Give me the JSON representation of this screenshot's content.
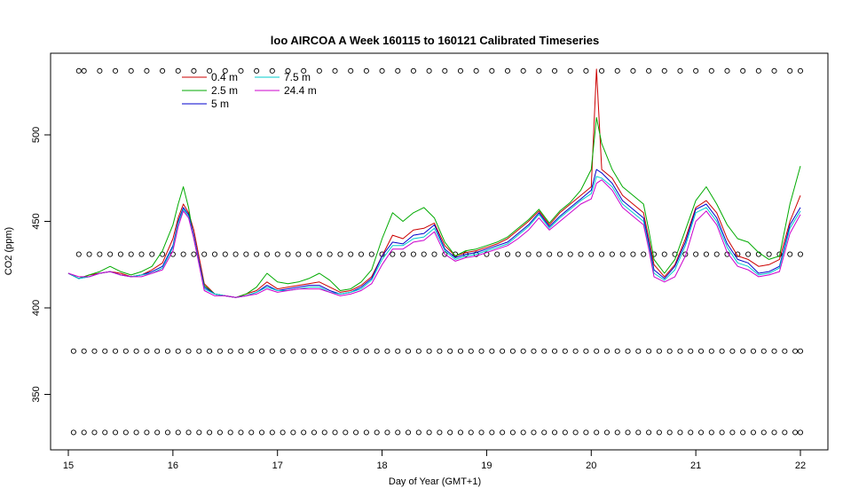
{
  "chart_data": {
    "type": "line",
    "title": "loo AIRCOA A  Week 160115 to 160121  Calibrated Timeseries",
    "xlabel": "Day of Year (GMT+1)",
    "ylabel": "CO2 (ppm)",
    "xlim": [
      15,
      22
    ],
    "ylim": [
      320,
      545
    ],
    "x_ticks": [
      15,
      16,
      17,
      18,
      19,
      20,
      21,
      22
    ],
    "y_ticks": [
      350,
      400,
      450,
      500
    ],
    "grid": false,
    "legend_position": "top-left",
    "x": [
      15.0,
      15.1,
      15.2,
      15.3,
      15.4,
      15.5,
      15.6,
      15.7,
      15.8,
      15.9,
      16.0,
      16.05,
      16.1,
      16.15,
      16.2,
      16.3,
      16.4,
      16.5,
      16.6,
      16.7,
      16.8,
      16.9,
      17.0,
      17.1,
      17.2,
      17.3,
      17.4,
      17.5,
      17.6,
      17.7,
      17.8,
      17.9,
      18.0,
      18.1,
      18.2,
      18.3,
      18.4,
      18.5,
      18.6,
      18.7,
      18.8,
      18.9,
      19.0,
      19.1,
      19.2,
      19.3,
      19.4,
      19.5,
      19.6,
      19.7,
      19.8,
      19.9,
      20.0,
      20.05,
      20.1,
      20.2,
      20.3,
      20.4,
      20.5,
      20.55,
      20.6,
      20.7,
      20.8,
      20.9,
      21.0,
      21.1,
      21.2,
      21.3,
      21.4,
      21.5,
      21.6,
      21.7,
      21.8,
      21.9,
      22.0
    ],
    "series": [
      {
        "name": "0.4 m",
        "color": "#cc0000",
        "values": [
          420,
          417,
          419,
          420,
          421,
          420,
          418,
          419,
          422,
          426,
          440,
          452,
          460,
          455,
          445,
          414,
          408,
          407,
          406,
          408,
          410,
          415,
          411,
          412,
          413,
          414,
          415,
          412,
          409,
          410,
          413,
          418,
          430,
          442,
          440,
          445,
          446,
          449,
          436,
          430,
          432,
          433,
          435,
          437,
          440,
          445,
          450,
          456,
          448,
          455,
          460,
          465,
          470,
          538,
          480,
          475,
          465,
          460,
          455,
          440,
          425,
          418,
          425,
          440,
          458,
          462,
          455,
          440,
          430,
          428,
          424,
          425,
          428,
          450,
          465
        ]
      },
      {
        "name": "2.5 m",
        "color": "#00aa00",
        "values": [
          420,
          417,
          419,
          421,
          424,
          421,
          419,
          421,
          424,
          433,
          448,
          460,
          470,
          458,
          440,
          413,
          408,
          407,
          406,
          408,
          412,
          420,
          415,
          414,
          415,
          417,
          420,
          416,
          410,
          411,
          415,
          422,
          440,
          455,
          450,
          455,
          458,
          452,
          438,
          430,
          433,
          434,
          436,
          438,
          441,
          446,
          451,
          457,
          449,
          456,
          461,
          468,
          480,
          510,
          495,
          480,
          470,
          465,
          460,
          445,
          428,
          420,
          428,
          445,
          462,
          470,
          460,
          448,
          440,
          438,
          432,
          428,
          430,
          460,
          482
        ]
      },
      {
        "name": "5 m",
        "color": "#0000cc",
        "values": [
          420,
          417,
          418,
          420,
          421,
          419,
          418,
          419,
          421,
          424,
          436,
          450,
          458,
          454,
          442,
          412,
          408,
          407,
          406,
          407,
          409,
          413,
          410,
          411,
          412,
          413,
          413,
          410,
          408,
          409,
          412,
          417,
          430,
          438,
          437,
          442,
          443,
          448,
          434,
          429,
          431,
          432,
          434,
          436,
          438,
          443,
          448,
          455,
          447,
          453,
          458,
          463,
          468,
          480,
          478,
          472,
          462,
          457,
          452,
          438,
          422,
          417,
          424,
          438,
          457,
          460,
          452,
          437,
          428,
          426,
          420,
          421,
          424,
          448,
          458
        ]
      },
      {
        "name": "7.5 m",
        "color": "#00cccc",
        "values": [
          420,
          417,
          418,
          420,
          421,
          419,
          418,
          419,
          420,
          423,
          435,
          449,
          457,
          453,
          441,
          411,
          408,
          407,
          406,
          407,
          409,
          412,
          410,
          410,
          411,
          412,
          412,
          409,
          408,
          409,
          411,
          416,
          428,
          436,
          436,
          440,
          441,
          446,
          433,
          428,
          430,
          431,
          433,
          435,
          437,
          442,
          447,
          454,
          446,
          452,
          457,
          462,
          466,
          476,
          475,
          470,
          460,
          455,
          450,
          436,
          420,
          416,
          422,
          436,
          455,
          458,
          450,
          435,
          426,
          424,
          419,
          420,
          423,
          446,
          456
        ]
      },
      {
        "name": "24.4 m",
        "color": "#cc00cc",
        "values": [
          420,
          418,
          418,
          420,
          421,
          419,
          418,
          418,
          420,
          422,
          433,
          447,
          456,
          452,
          440,
          410,
          407,
          407,
          406,
          407,
          408,
          411,
          409,
          410,
          411,
          411,
          411,
          409,
          407,
          408,
          410,
          414,
          425,
          434,
          434,
          438,
          439,
          444,
          431,
          427,
          429,
          430,
          432,
          434,
          436,
          440,
          445,
          452,
          445,
          450,
          455,
          460,
          463,
          472,
          474,
          468,
          458,
          453,
          448,
          434,
          418,
          415,
          418,
          430,
          450,
          456,
          448,
          432,
          424,
          422,
          418,
          419,
          421,
          443,
          454
        ]
      }
    ],
    "flag_rows": [
      {
        "y": 537,
        "x": [
          15.1,
          15.15,
          15.3,
          15.45,
          15.6,
          15.75,
          15.9,
          16.05,
          16.2,
          16.35,
          16.5,
          16.65,
          16.8,
          16.95,
          17.1,
          17.25,
          17.4,
          17.55,
          17.7,
          17.85,
          18.0,
          18.15,
          18.3,
          18.45,
          18.6,
          18.75,
          18.9,
          19.05,
          19.2,
          19.35,
          19.5,
          19.65,
          19.8,
          19.95,
          20.1,
          20.25,
          20.4,
          20.55,
          20.7,
          20.85,
          21.0,
          21.15,
          21.3,
          21.45,
          21.6,
          21.75,
          21.9,
          22.0
        ]
      },
      {
        "y": 431,
        "x": [
          15.1,
          15.2,
          15.3,
          15.4,
          15.5,
          15.6,
          15.7,
          15.8,
          15.9,
          16.0,
          16.1,
          16.2,
          16.3,
          16.4,
          16.5,
          16.6,
          16.7,
          16.8,
          16.9,
          17.0,
          17.1,
          17.2,
          17.3,
          17.4,
          17.5,
          17.6,
          17.7,
          17.8,
          17.9,
          18.0,
          18.1,
          18.2,
          18.3,
          18.4,
          18.5,
          18.6,
          18.7,
          18.8,
          18.9,
          19.0,
          19.1,
          19.2,
          19.3,
          19.4,
          19.5,
          19.6,
          19.7,
          19.8,
          19.9,
          20.0,
          20.1,
          20.2,
          20.3,
          20.4,
          20.5,
          20.6,
          20.7,
          20.8,
          20.9,
          21.0,
          21.1,
          21.2,
          21.3,
          21.4,
          21.5,
          21.6,
          21.7,
          21.8,
          21.9,
          22.0
        ]
      },
      {
        "y": 375,
        "x": [
          15.05,
          15.15,
          15.25,
          15.35,
          15.45,
          15.55,
          15.65,
          15.75,
          15.85,
          15.95,
          16.05,
          16.15,
          16.25,
          16.35,
          16.45,
          16.55,
          16.65,
          16.75,
          16.85,
          16.95,
          17.05,
          17.15,
          17.25,
          17.35,
          17.45,
          17.55,
          17.65,
          17.75,
          17.85,
          17.95,
          18.05,
          18.15,
          18.25,
          18.35,
          18.45,
          18.55,
          18.65,
          18.75,
          18.85,
          18.95,
          19.05,
          19.15,
          19.25,
          19.35,
          19.45,
          19.55,
          19.65,
          19.75,
          19.85,
          19.95,
          20.05,
          20.15,
          20.25,
          20.35,
          20.45,
          20.55,
          20.65,
          20.75,
          20.85,
          20.95,
          21.05,
          21.15,
          21.25,
          21.35,
          21.45,
          21.55,
          21.65,
          21.75,
          21.85,
          21.95,
          22.0
        ]
      },
      {
        "y": 328,
        "x": [
          15.05,
          15.15,
          15.25,
          15.35,
          15.45,
          15.55,
          15.65,
          15.75,
          15.85,
          15.95,
          16.05,
          16.15,
          16.25,
          16.35,
          16.45,
          16.55,
          16.65,
          16.75,
          16.85,
          16.95,
          17.05,
          17.15,
          17.25,
          17.35,
          17.45,
          17.55,
          17.65,
          17.75,
          17.85,
          17.95,
          18.05,
          18.15,
          18.25,
          18.35,
          18.45,
          18.55,
          18.65,
          18.75,
          18.85,
          18.95,
          19.05,
          19.15,
          19.25,
          19.35,
          19.45,
          19.55,
          19.65,
          19.75,
          19.85,
          19.95,
          20.05,
          20.15,
          20.25,
          20.35,
          20.45,
          20.55,
          20.65,
          20.75,
          20.85,
          20.95,
          21.05,
          21.15,
          21.25,
          21.35,
          21.45,
          21.55,
          21.65,
          21.75,
          21.85,
          21.95,
          22.0
        ]
      }
    ]
  }
}
